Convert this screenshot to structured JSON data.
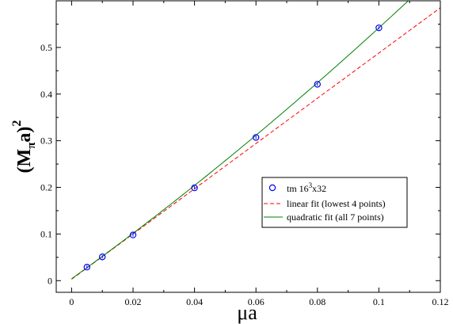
{
  "chart_data": {
    "type": "scatter",
    "title": "",
    "xlabel": "μa",
    "ylabel": {
      "main": "(M",
      "sub": "π",
      "tail": "a)",
      "sup": "2"
    },
    "xlim": [
      -0.005,
      0.12
    ],
    "ylim": [
      -0.025,
      0.6
    ],
    "xticks": [
      0,
      0.02,
      0.04,
      0.06,
      0.08,
      0.1,
      0.12
    ],
    "xtick_labels": [
      "0",
      "0.02",
      "0.04",
      "0.06",
      "0.08",
      "0.1",
      "0.12"
    ],
    "yticks": [
      0,
      0.1,
      0.2,
      0.3,
      0.4,
      0.5
    ],
    "ytick_labels": [
      "0",
      "0.1",
      "0.2",
      "0.3",
      "0.4",
      "0.5"
    ],
    "grid": false,
    "legend_position": "lower-right",
    "series": [
      {
        "name": "tm 16^3x32",
        "kind": "points",
        "marker": "circle",
        "color": "#0000ff",
        "x": [
          0.005,
          0.01,
          0.02,
          0.04,
          0.06,
          0.08,
          0.1
        ],
        "y": [
          0.029,
          0.051,
          0.098,
          0.199,
          0.307,
          0.421,
          0.542
        ]
      },
      {
        "name": "linear fit (lowest 4 points)",
        "kind": "line",
        "style": "dashed",
        "color": "#ff0000",
        "intercept": 0.003,
        "slope": 4.85
      },
      {
        "name": "quadratic fit (all 7 points)",
        "kind": "line",
        "style": "solid",
        "color": "#008000",
        "c0": 0.004,
        "c1": 4.75,
        "c2": 6.3
      }
    ]
  },
  "legend": {
    "entries": [
      {
        "main": "tm 16",
        "sup": "3",
        "tail": "x32"
      },
      {
        "main": "linear fit (lowest 4 points)"
      },
      {
        "main": "quadratic fit (all 7 points)"
      }
    ]
  }
}
